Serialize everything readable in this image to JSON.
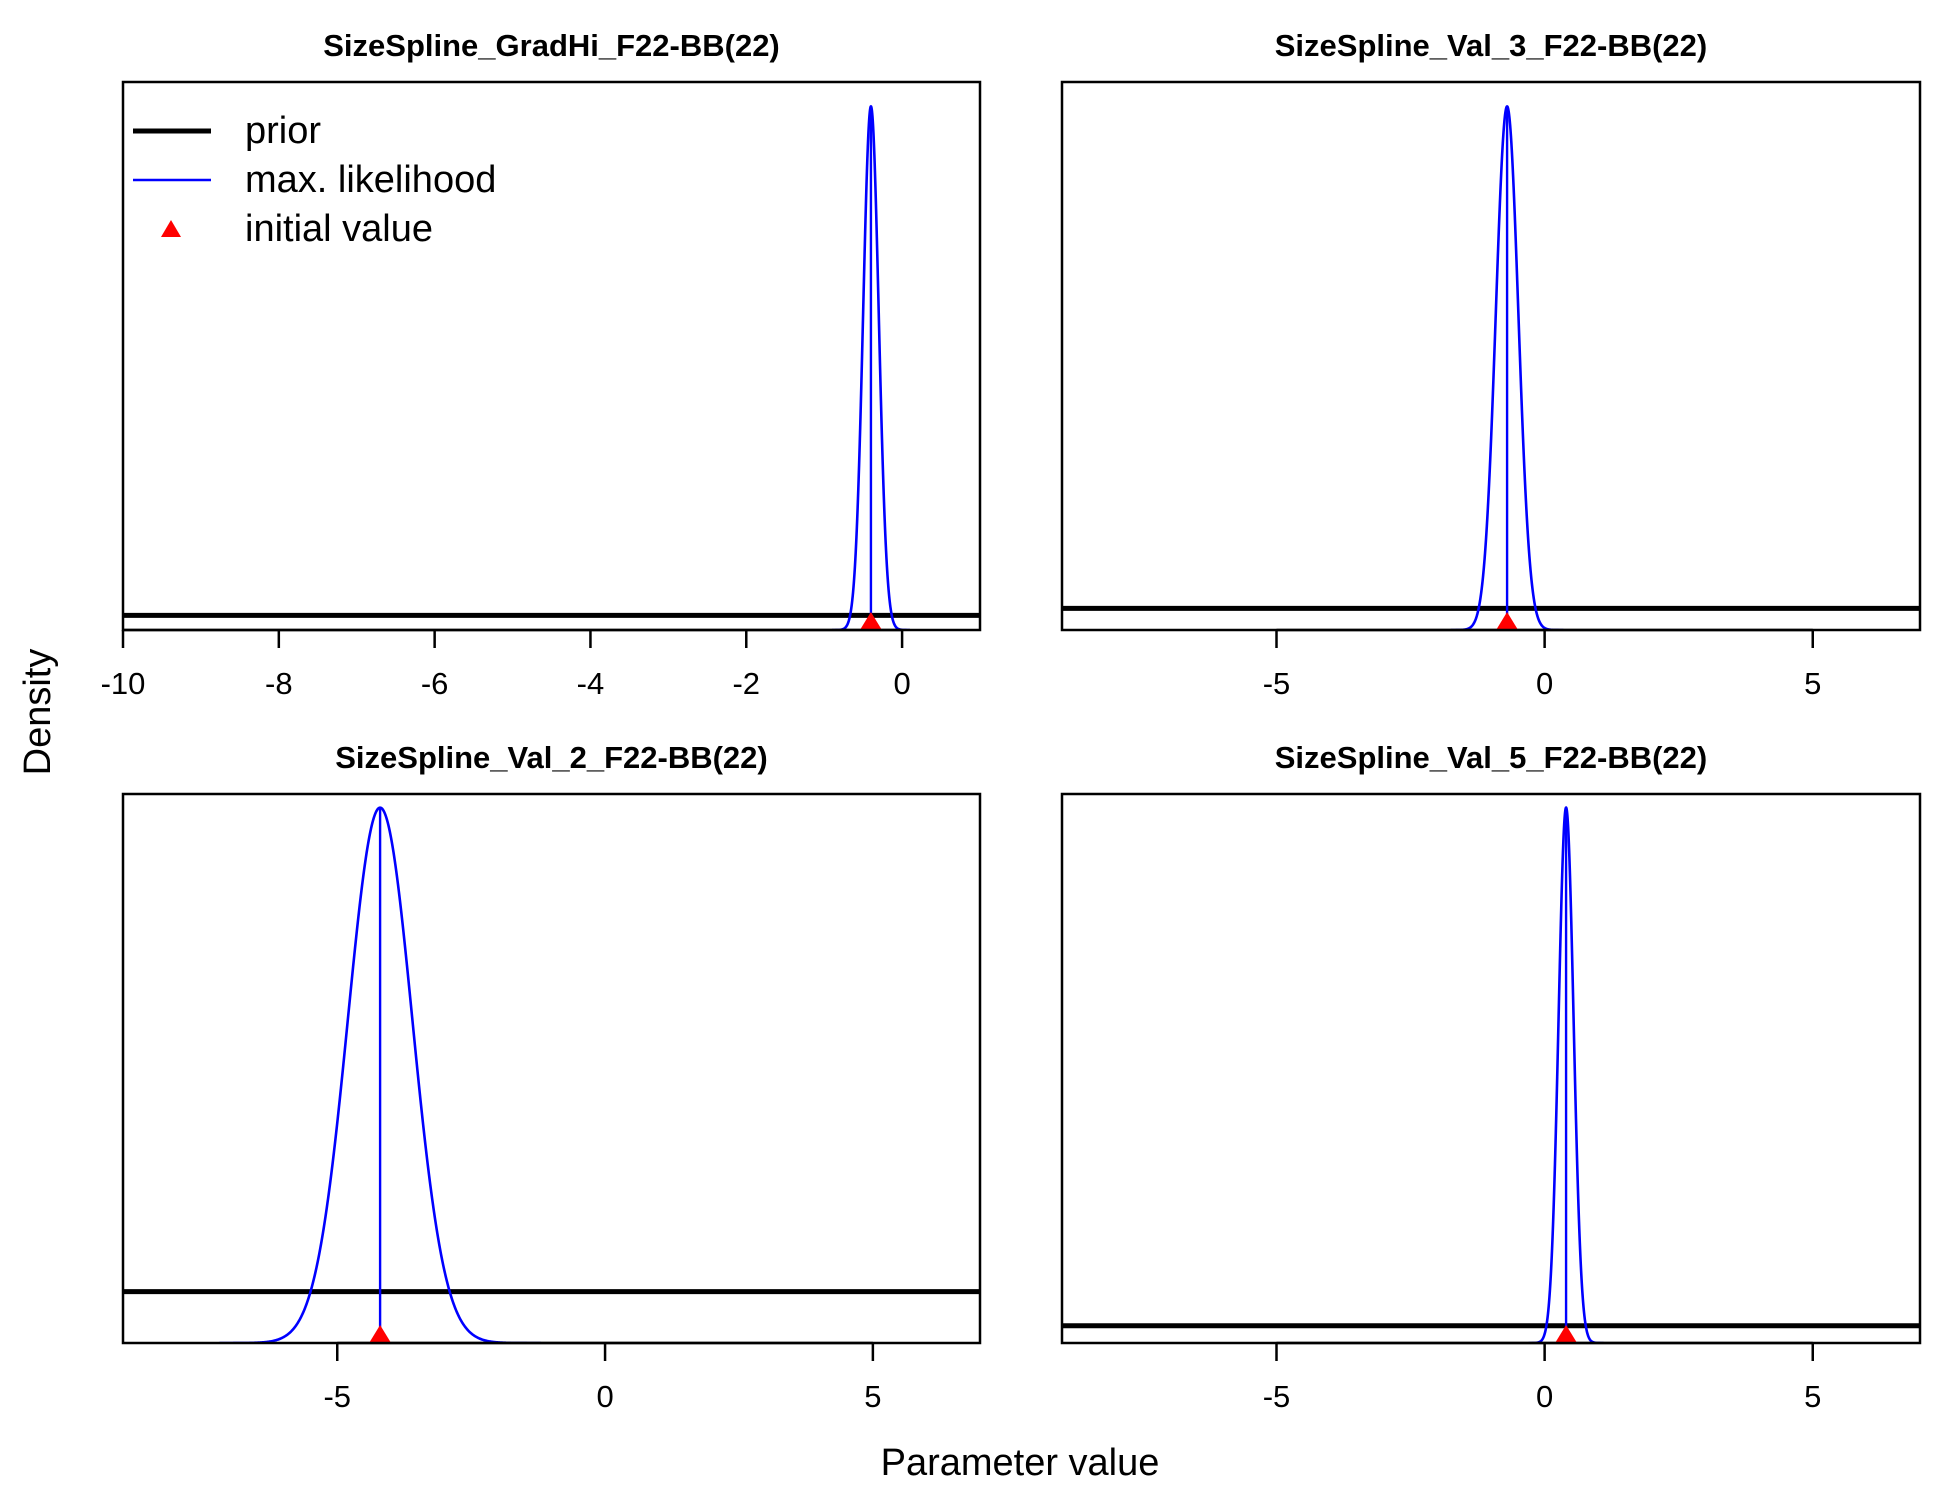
{
  "figure": {
    "xlabel": "Parameter value",
    "ylabel": "Density"
  },
  "legend": {
    "placement": "top-left of first panel",
    "items": [
      {
        "label": "prior",
        "kind": "line",
        "color": "#000000"
      },
      {
        "label": "max. likelihood",
        "kind": "line",
        "color": "#0000ff"
      },
      {
        "label": "initial value",
        "kind": "triangle",
        "color": "#ff0000"
      }
    ]
  },
  "colors": {
    "prior": "#000000",
    "mle": "#0000ff",
    "initial": "#ff0000",
    "frame": "#000000"
  },
  "chart_data": [
    {
      "type": "line",
      "title": "SizeSpline_GradHi_F22-BB(22)",
      "xlim": [
        -10,
        1
      ],
      "xticks": [
        -10,
        -8,
        -6,
        -4,
        -2,
        0
      ],
      "ylim": [
        0,
        1
      ],
      "prior_level": 0.027,
      "mle": {
        "mean": -0.4,
        "sd": 0.1,
        "peak": 0.97
      },
      "initial_value": -0.4,
      "series": [
        {
          "kind": "prior",
          "x": [
            -10,
            1
          ],
          "y": [
            0.027,
            0.027
          ]
        },
        {
          "kind": "max_likelihood",
          "distribution": "normal",
          "mean": -0.4,
          "sd": 0.1
        }
      ]
    },
    {
      "type": "line",
      "title": "SizeSpline_Val_3_F22-BB(22)",
      "xlim": [
        -9,
        7
      ],
      "xticks": [
        -5,
        0,
        5
      ],
      "ylim": [
        0,
        1
      ],
      "prior_level": 0.04,
      "mle": {
        "mean": -0.7,
        "sd": 0.21,
        "peak": 0.97
      },
      "initial_value": -0.7,
      "series": [
        {
          "kind": "prior",
          "x": [
            -9,
            7
          ],
          "y": [
            0.04,
            0.04
          ]
        },
        {
          "kind": "max_likelihood",
          "distribution": "normal",
          "mean": -0.7,
          "sd": 0.21
        }
      ]
    },
    {
      "type": "line",
      "title": "SizeSpline_Val_2_F22-BB(22)",
      "xlim": [
        -9,
        7
      ],
      "xticks": [
        -5,
        0,
        5
      ],
      "ylim": [
        0,
        1
      ],
      "prior_level": 0.095,
      "mle": {
        "mean": -4.2,
        "sd": 0.6,
        "peak": 0.99
      },
      "initial_value": -4.2,
      "series": [
        {
          "kind": "prior",
          "x": [
            -9,
            7
          ],
          "y": [
            0.095,
            0.095
          ]
        },
        {
          "kind": "max_likelihood",
          "distribution": "normal",
          "mean": -4.2,
          "sd": 0.6
        }
      ]
    },
    {
      "type": "line",
      "title": "SizeSpline_Val_5_F22-BB(22)",
      "xlim": [
        -9,
        7
      ],
      "xticks": [
        -5,
        0,
        5
      ],
      "ylim": [
        0,
        1
      ],
      "prior_level": 0.032,
      "mle": {
        "mean": 0.4,
        "sd": 0.14,
        "peak": 0.99
      },
      "initial_value": 0.4,
      "series": [
        {
          "kind": "prior",
          "x": [
            -9,
            7
          ],
          "y": [
            0.032,
            0.032
          ]
        },
        {
          "kind": "max_likelihood",
          "distribution": "normal",
          "mean": 0.4,
          "sd": 0.14
        }
      ]
    }
  ]
}
